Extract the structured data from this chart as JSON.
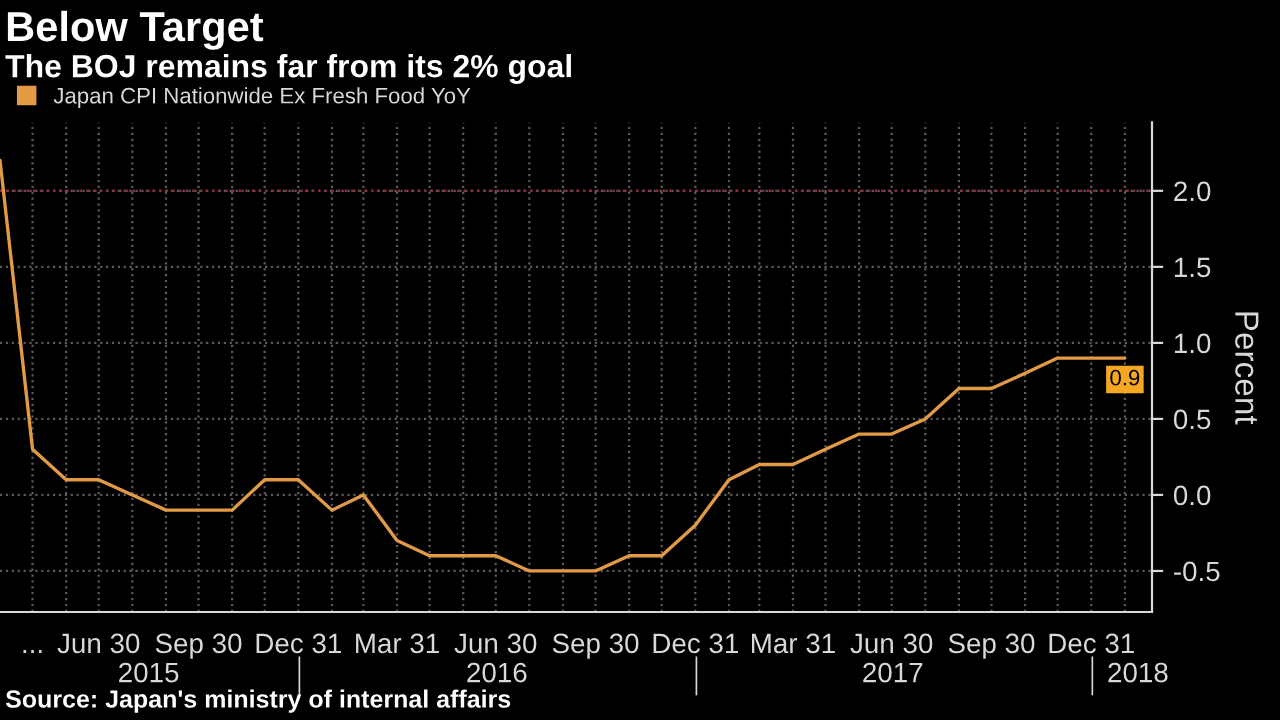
{
  "chart_data": {
    "type": "line",
    "title": "Below Target",
    "subtitle": "The BOJ remains far from its 2% goal",
    "ylabel": "Percent",
    "x": [
      "2015-03-31",
      "2015-04-30",
      "2015-05-31",
      "2015-06-30",
      "2015-07-31",
      "2015-08-31",
      "2015-09-30",
      "2015-10-31",
      "2015-11-30",
      "2015-12-31",
      "2016-01-31",
      "2016-02-29",
      "2016-03-31",
      "2016-04-30",
      "2016-05-31",
      "2016-06-30",
      "2016-07-31",
      "2016-08-31",
      "2016-09-30",
      "2016-10-31",
      "2016-11-30",
      "2016-12-31",
      "2017-01-31",
      "2017-02-28",
      "2017-03-31",
      "2017-04-30",
      "2017-05-31",
      "2017-06-30",
      "2017-07-31",
      "2017-08-31",
      "2017-09-30",
      "2017-10-31",
      "2017-11-30",
      "2017-12-31",
      "2018-01-31"
    ],
    "series": [
      {
        "name": "Japan CPI Nationwide Ex Fresh Food YoY",
        "color": "#e39a45",
        "values": [
          2.2,
          0.3,
          0.1,
          0.1,
          0.0,
          -0.1,
          -0.1,
          -0.1,
          0.1,
          0.1,
          -0.1,
          0.0,
          -0.3,
          -0.4,
          -0.4,
          -0.4,
          -0.5,
          -0.5,
          -0.5,
          -0.4,
          -0.4,
          -0.2,
          0.1,
          0.2,
          0.2,
          0.3,
          0.4,
          0.4,
          0.5,
          0.7,
          0.7,
          0.8,
          0.9,
          0.9,
          0.9
        ],
        "value_labels": [
          null,
          null,
          null,
          null,
          null,
          null,
          null,
          null,
          null,
          null,
          null,
          null,
          null,
          null,
          null,
          null,
          null,
          null,
          null,
          null,
          null,
          null,
          null,
          null,
          null,
          null,
          null,
          null,
          null,
          null,
          null,
          null,
          null,
          null,
          "0.9"
        ]
      }
    ],
    "xlim": [
      "2015-03-31",
      "2018-02-25"
    ],
    "xticks": [
      {
        "value": "2015-04-30",
        "label": "..."
      },
      {
        "value": "2015-05-31",
        "label": null
      },
      {
        "value": "2015-06-30",
        "label": "Jun 30"
      },
      {
        "value": "2015-07-31",
        "label": null
      },
      {
        "value": "2015-08-31",
        "label": null
      },
      {
        "value": "2015-09-30",
        "label": "Sep 30"
      },
      {
        "value": "2015-10-31",
        "label": null
      },
      {
        "value": "2015-11-30",
        "label": null
      },
      {
        "value": "2015-12-31",
        "label": "Dec 31"
      },
      {
        "value": "2016-01-31",
        "label": null
      },
      {
        "value": "2016-02-29",
        "label": null
      },
      {
        "value": "2016-03-31",
        "label": "Mar 31"
      },
      {
        "value": "2016-04-30",
        "label": null
      },
      {
        "value": "2016-05-31",
        "label": null
      },
      {
        "value": "2016-06-30",
        "label": "Jun 30"
      },
      {
        "value": "2016-07-31",
        "label": null
      },
      {
        "value": "2016-08-31",
        "label": null
      },
      {
        "value": "2016-09-30",
        "label": "Sep 30"
      },
      {
        "value": "2016-10-31",
        "label": null
      },
      {
        "value": "2016-11-30",
        "label": null
      },
      {
        "value": "2016-12-31",
        "label": "Dec 31"
      },
      {
        "value": "2017-01-31",
        "label": null
      },
      {
        "value": "2017-02-28",
        "label": null
      },
      {
        "value": "2017-03-31",
        "label": "Mar 31"
      },
      {
        "value": "2017-04-30",
        "label": null
      },
      {
        "value": "2017-05-31",
        "label": null
      },
      {
        "value": "2017-06-30",
        "label": "Jun 30"
      },
      {
        "value": "2017-07-31",
        "label": null
      },
      {
        "value": "2017-08-31",
        "label": null
      },
      {
        "value": "2017-09-30",
        "label": "Sep 30"
      },
      {
        "value": "2017-10-31",
        "label": null
      },
      {
        "value": "2017-11-30",
        "label": null
      },
      {
        "value": "2017-12-31",
        "label": "Dec 31"
      },
      {
        "value": "2018-01-31",
        "label": null
      }
    ],
    "x2lim": [
      "2015-03-31",
      "2018-02-25"
    ],
    "x2ticks": [
      {
        "value": "2015-08-15",
        "label": "2015"
      },
      {
        "value": "2016-01-01",
        "label": null
      },
      {
        "value": "2016-07-01",
        "label": "2016"
      },
      {
        "value": "2017-01-01",
        "label": null
      },
      {
        "value": "2017-07-01",
        "label": "2017"
      },
      {
        "value": "2018-01-01",
        "label": null
      },
      {
        "value": "2018-02-12",
        "label": "2018"
      }
    ],
    "ylim": [
      -0.77,
      2.45
    ],
    "yticks": [
      -0.5,
      {
        "value": 0,
        "label": "0.0"
      },
      0.5,
      {
        "value": 1,
        "label": "1.0"
      },
      1.5,
      {
        "value": 2,
        "label": "2.0"
      }
    ],
    "ref_lines": [
      {
        "axis": "y",
        "value": 2.0,
        "label": null,
        "color": "#8b2a3a",
        "line_style": "dotted"
      }
    ],
    "grid": true,
    "legend": "top left",
    "annotations": [
      "Source: Japan's ministry of internal affairs"
    ]
  }
}
